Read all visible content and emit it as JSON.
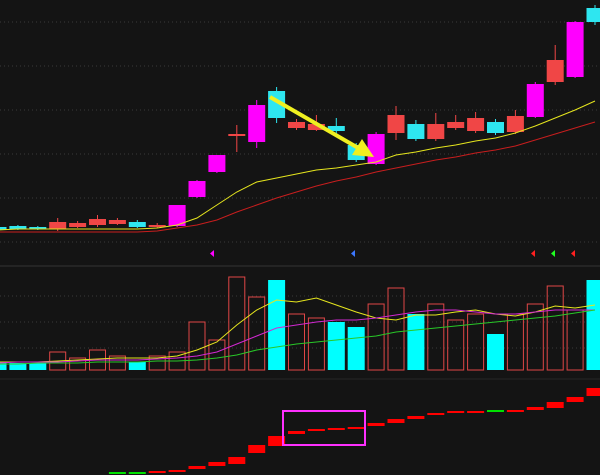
{
  "chart_data": [
    {
      "type": "candlestick",
      "ylim": [
        0,
        265
      ],
      "open": [
        38,
        39,
        38,
        36,
        38,
        40,
        41,
        43,
        38,
        39,
        68,
        93,
        129,
        123,
        174,
        137,
        135,
        139,
        120,
        101,
        132,
        141,
        126,
        137,
        134,
        143,
        133,
        148,
        183,
        188,
        257
      ],
      "high": [
        39,
        40,
        39,
        47,
        44,
        50,
        47,
        45,
        42,
        60,
        85,
        110,
        140,
        165,
        178,
        146,
        150,
        147,
        122,
        133,
        159,
        145,
        152,
        150,
        153,
        146,
        155,
        183,
        220,
        244,
        260
      ],
      "low": [
        34,
        35,
        35,
        34,
        37,
        38,
        40,
        37,
        37,
        38,
        67,
        92,
        113,
        117,
        142,
        135,
        134,
        129,
        103,
        100,
        125,
        124,
        124,
        135,
        132,
        130,
        131,
        147,
        180,
        187,
        240
      ],
      "close": [
        35,
        36,
        36,
        43,
        42,
        46,
        45,
        38,
        40,
        60,
        84,
        110,
        131,
        160,
        147,
        143,
        141,
        134,
        105,
        131,
        150,
        126,
        141,
        143,
        147,
        132,
        149,
        181,
        205,
        243,
        243
      ],
      "colors": [
        "#2ee6f0",
        "#2ee6f0",
        "#2ee6f0",
        "#f04646",
        "#f04646",
        "#f04646",
        "#f04646",
        "#2ee6f0",
        "#f04646",
        "#ff00ff",
        "#ff00ff",
        "#ff00ff",
        "#f04646",
        "#ff00ff",
        "#2ee6f0",
        "#f04646",
        "#f04646",
        "#2ee6f0",
        "#2ee6f0",
        "#ff00ff",
        "#f04646",
        "#2ee6f0",
        "#f04646",
        "#f04646",
        "#f04646",
        "#2ee6f0",
        "#f04646",
        "#ff00ff",
        "#f04646",
        "#ff00ff",
        "#2ee6f0"
      ],
      "lines": [
        {
          "color": "#e6e61e",
          "values": [
            35,
            36,
            36,
            36,
            36,
            36,
            36,
            36,
            37,
            40,
            47,
            60,
            73,
            83,
            87,
            91,
            95,
            97,
            100,
            103,
            110,
            113,
            117,
            120,
            124,
            127,
            132,
            139,
            147,
            155,
            164
          ]
        },
        {
          "color": "#c81e1e",
          "values": [
            33,
            33,
            33,
            33,
            33,
            33,
            33,
            33,
            34,
            37,
            40,
            45,
            53,
            60,
            67,
            73,
            79,
            84,
            88,
            93,
            97,
            101,
            105,
            108,
            112,
            115,
            119,
            125,
            131,
            137,
            143
          ]
        }
      ]
    },
    {
      "type": "volume",
      "ylim": [
        0,
        98
      ],
      "hollow_color": "#e04646",
      "values": [
        7,
        7,
        7,
        18,
        12,
        20,
        14,
        8,
        14,
        18,
        48,
        30,
        93,
        73,
        90,
        56,
        52,
        48,
        43,
        66,
        82,
        56,
        66,
        50,
        56,
        36,
        56,
        66,
        84,
        60,
        90
      ],
      "colors": [
        "#00ffff",
        "#00ffff",
        "#00ffff",
        "#e04646",
        "#e04646",
        "#e04646",
        "#e04646",
        "#00ffff",
        "#e04646",
        "#e04646",
        "#e04646",
        "#e04646",
        "#e04646",
        "#e04646",
        "#00ffff",
        "#e04646",
        "#e04646",
        "#00ffff",
        "#00ffff",
        "#e04646",
        "#e04646",
        "#00ffff",
        "#e04646",
        "#e04646",
        "#e04646",
        "#00ffff",
        "#e04646",
        "#e04646",
        "#e04646",
        "#e04646",
        "#00ffff"
      ],
      "lines": [
        {
          "color": "#e6e61e",
          "values": [
            8,
            8,
            8,
            9,
            10,
            11,
            12,
            12,
            12,
            14,
            20,
            28,
            45,
            60,
            70,
            68,
            72,
            65,
            58,
            52,
            50,
            55,
            55,
            58,
            60,
            56,
            54,
            58,
            64,
            62,
            65
          ]
        },
        {
          "color": "#d228d2",
          "values": [
            7,
            8,
            8,
            8,
            9,
            10,
            10,
            10,
            11,
            12,
            14,
            18,
            26,
            34,
            42,
            45,
            48,
            50,
            50,
            52,
            55,
            58,
            60,
            60,
            58,
            56,
            56,
            58,
            60,
            60,
            60
          ]
        },
        {
          "color": "#28c828",
          "values": [
            6,
            6,
            7,
            7,
            7,
            8,
            8,
            8,
            9,
            9,
            10,
            12,
            15,
            20,
            23,
            26,
            28,
            30,
            32,
            34,
            38,
            40,
            42,
            44,
            46,
            48,
            50,
            52,
            54,
            57,
            60
          ]
        }
      ]
    },
    {
      "type": "indicator",
      "ylim": [
        0,
        90
      ],
      "low": [
        null,
        null,
        null,
        null,
        null,
        null,
        1,
        1,
        2,
        3,
        6,
        9,
        11,
        22,
        29,
        41,
        44,
        45,
        46,
        49,
        52,
        56,
        60,
        62,
        62,
        63,
        63,
        65,
        67,
        73,
        79
      ],
      "high": [
        null,
        null,
        null,
        null,
        null,
        null,
        3,
        3,
        4,
        5,
        9,
        13,
        18,
        30,
        39,
        44,
        46,
        47,
        48,
        52,
        56,
        59,
        62,
        64,
        64,
        65,
        65,
        68,
        73,
        78,
        87
      ],
      "colors": [
        null,
        null,
        null,
        null,
        null,
        null,
        "#00e000",
        "#00e000",
        "#ff0000",
        "#ff0000",
        "#ff0000",
        "#ff0000",
        "#ff0000",
        "#ff0000",
        "#ff0000",
        "#ff0000",
        "#ff0000",
        "#ff0000",
        "#ff0000",
        "#ff0000",
        "#ff0000",
        "#ff0000",
        "#ff0000",
        "#ff0000",
        "#ff0000",
        "#00e000",
        "#ff0000",
        "#ff0000",
        "#ff0000",
        "#ff0000",
        "#ff0000"
      ]
    }
  ]
}
